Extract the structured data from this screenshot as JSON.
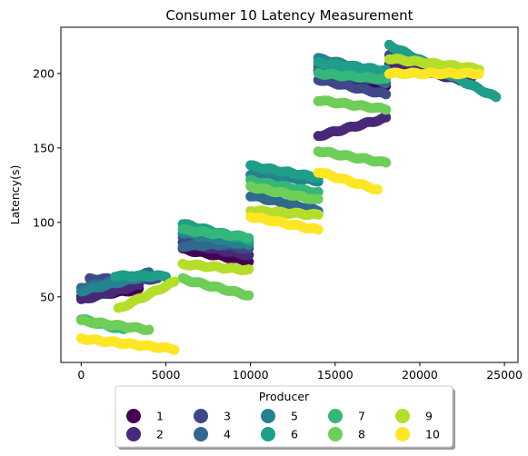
{
  "chart_data": {
    "type": "scatter",
    "title": "Consumer 10 Latency Measurement",
    "xlabel": "",
    "ylabel": "Latency(s)",
    "xlim": [
      -1200,
      25800
    ],
    "ylim": [
      6,
      231
    ],
    "xticks": [
      0,
      5000,
      10000,
      15000,
      20000,
      25000
    ],
    "yticks": [
      50,
      100,
      150,
      200
    ],
    "grid": false,
    "legend": {
      "title": "Producer",
      "placement": "bottom-center",
      "columns": 5
    },
    "series": [
      {
        "name": "1",
        "color": "#440154",
        "segments": [
          [
            0,
            50,
            3400,
            55
          ],
          [
            6000,
            82,
            9900,
            74
          ],
          [
            14000,
            201,
            18000,
            191
          ]
        ]
      },
      {
        "name": "2",
        "color": "#482878",
        "segments": [
          [
            0,
            48,
            3400,
            58
          ],
          [
            6000,
            86,
            9900,
            78
          ],
          [
            14000,
            158,
            18000,
            170
          ],
          [
            18200,
            207,
            23000,
            194
          ]
        ]
      },
      {
        "name": "3",
        "color": "#3e4989",
        "segments": [
          [
            500,
            62,
            4500,
            62
          ],
          [
            6000,
            90,
            9900,
            82
          ],
          [
            14000,
            196,
            18000,
            186
          ],
          [
            18200,
            213,
            23200,
            199
          ]
        ]
      },
      {
        "name": "4",
        "color": "#31688e",
        "segments": [
          [
            0,
            56,
            4000,
            66
          ],
          [
            6000,
            84,
            9900,
            86
          ],
          [
            10000,
            118,
            14000,
            108
          ],
          [
            14000,
            205,
            18000,
            194
          ]
        ]
      },
      {
        "name": "5",
        "color": "#26828e",
        "segments": [
          [
            0,
            54,
            3800,
            64
          ],
          [
            6000,
            93,
            9900,
            85
          ],
          [
            10000,
            132,
            14000,
            128
          ],
          [
            14000,
            210,
            18000,
            200
          ]
        ]
      },
      {
        "name": "6",
        "color": "#1f9e89",
        "segments": [
          [
            2000,
            64,
            5000,
            64
          ],
          [
            6000,
            99,
            9900,
            88
          ],
          [
            10000,
            138,
            14000,
            130
          ],
          [
            14000,
            207,
            18000,
            202
          ],
          [
            18200,
            219,
            24500,
            184
          ]
        ]
      },
      {
        "name": "7",
        "color": "#35b779",
        "segments": [
          [
            0,
            35,
            2500,
            28
          ],
          [
            6000,
            95,
            9900,
            90
          ],
          [
            10000,
            128,
            14000,
            120
          ],
          [
            14000,
            200,
            18000,
            196
          ]
        ]
      },
      {
        "name": "8",
        "color": "#6ece58",
        "segments": [
          [
            0,
            34,
            4000,
            28
          ],
          [
            6000,
            62,
            9900,
            51
          ],
          [
            10000,
            124,
            14000,
            115
          ],
          [
            14000,
            148,
            18000,
            140
          ],
          [
            14000,
            182,
            18000,
            176
          ]
        ]
      },
      {
        "name": "9",
        "color": "#b5de2b",
        "segments": [
          [
            2200,
            42,
            5500,
            60
          ],
          [
            6000,
            72,
            9900,
            68
          ],
          [
            10000,
            108,
            14000,
            105
          ],
          [
            18200,
            210,
            23500,
            203
          ]
        ]
      },
      {
        "name": "10",
        "color": "#fde725",
        "segments": [
          [
            0,
            22,
            5500,
            15
          ],
          [
            10000,
            104,
            14000,
            95
          ],
          [
            14000,
            134,
            17500,
            122
          ],
          [
            18200,
            200,
            23500,
            200
          ]
        ]
      }
    ]
  }
}
